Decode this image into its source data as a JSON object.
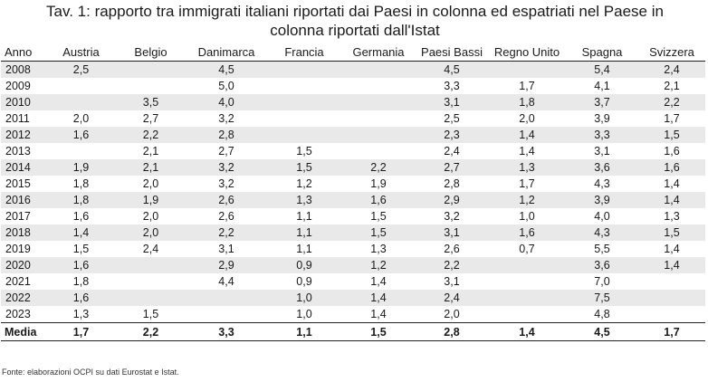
{
  "title_line1": "Tav. 1: rapporto tra immigrati italiani riportati dai Paesi in colonna ed espatriati nel Paese in",
  "title_line2": "colonna riportati dall'Istat",
  "columns": [
    "Anno",
    "Austria",
    "Belgio",
    "Danimarca",
    "Francia",
    "Germania",
    "Paesi Bassi",
    "Regno Unito",
    "Spagna",
    "Svizzera"
  ],
  "rows": [
    [
      "2008",
      "2,5",
      "",
      "4,5",
      "",
      "",
      "4,5",
      "",
      "5,4",
      "2,4"
    ],
    [
      "2009",
      "",
      "",
      "5,0",
      "",
      "",
      "3,3",
      "1,7",
      "4,1",
      "2,1"
    ],
    [
      "2010",
      "",
      "3,5",
      "4,0",
      "",
      "",
      "3,1",
      "1,8",
      "3,7",
      "2,2"
    ],
    [
      "2011",
      "2,0",
      "2,7",
      "3,2",
      "",
      "",
      "2,5",
      "2,0",
      "3,9",
      "1,7"
    ],
    [
      "2012",
      "1,6",
      "2,2",
      "2,8",
      "",
      "",
      "2,3",
      "1,4",
      "3,3",
      "1,5"
    ],
    [
      "2013",
      "",
      "2,1",
      "2,7",
      "1,5",
      "",
      "2,4",
      "1,4",
      "3,1",
      "1,6"
    ],
    [
      "2014",
      "1,9",
      "2,1",
      "3,2",
      "1,5",
      "2,2",
      "2,7",
      "1,3",
      "3,6",
      "1,6"
    ],
    [
      "2015",
      "1,8",
      "2,0",
      "3,2",
      "1,2",
      "1,9",
      "2,8",
      "1,7",
      "4,3",
      "1,4"
    ],
    [
      "2016",
      "1,8",
      "1,9",
      "2,6",
      "1,3",
      "1,6",
      "2,9",
      "1,2",
      "3,9",
      "1,4"
    ],
    [
      "2017",
      "1,6",
      "2,0",
      "2,6",
      "1,1",
      "1,5",
      "3,2",
      "1,0",
      "4,0",
      "1,3"
    ],
    [
      "2018",
      "1,4",
      "2,0",
      "2,2",
      "1,1",
      "1,5",
      "3,1",
      "1,6",
      "4,3",
      "1,5"
    ],
    [
      "2019",
      "1,5",
      "2,4",
      "3,1",
      "1,1",
      "1,3",
      "2,6",
      "0,7",
      "5,5",
      "1,4"
    ],
    [
      "2020",
      "1,6",
      "",
      "2,9",
      "0,9",
      "1,2",
      "2,2",
      "",
      "3,6",
      "1,4"
    ],
    [
      "2021",
      "1,8",
      "",
      "4,4",
      "0,9",
      "1,4",
      "3,1",
      "",
      "7,0",
      ""
    ],
    [
      "2022",
      "1,6",
      "",
      "",
      "1,0",
      "1,4",
      "2,4",
      "",
      "7,5",
      ""
    ],
    [
      "2023",
      "1,3",
      "1,5",
      "",
      "1,0",
      "1,4",
      "2,0",
      "",
      "4,8",
      ""
    ]
  ],
  "media": [
    "Media",
    "1,7",
    "2,2",
    "3,3",
    "1,1",
    "1,5",
    "2,8",
    "1,4",
    "4,5",
    "1,7"
  ],
  "footnote": "Fonte: elaborazioni OCPI su dati Eurostat e Istat."
}
